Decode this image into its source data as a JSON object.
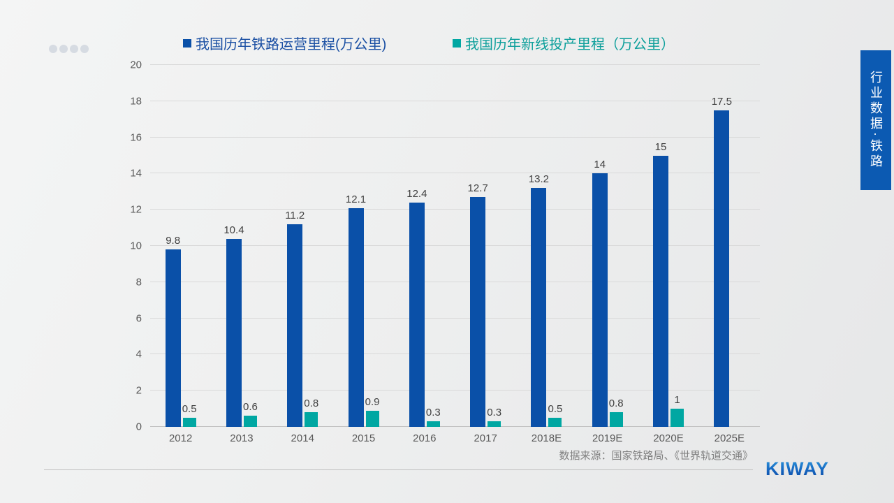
{
  "pagination": {
    "dot_count": 4
  },
  "legend": [
    {
      "label": "我国历年铁路运营里程(万公里)",
      "color": "#0a50a8"
    },
    {
      "label": "我国历年新线投产里程（万公里）",
      "color": "#00a7a2"
    }
  ],
  "chart_data": {
    "type": "bar",
    "categories": [
      "2012",
      "2013",
      "2014",
      "2015",
      "2016",
      "2017",
      "2018E",
      "2019E",
      "2020E",
      "2025E"
    ],
    "series": [
      {
        "name": "我国历年铁路运营里程(万公里)",
        "color": "#0a50a8",
        "values": [
          9.8,
          10.4,
          11.2,
          12.1,
          12.4,
          12.7,
          13.2,
          14,
          15,
          17.5
        ]
      },
      {
        "name": "我国历年新线投产里程（万公里）",
        "color": "#00a7a2",
        "values": [
          0.5,
          0.6,
          0.8,
          0.9,
          0.3,
          0.3,
          0.5,
          0.8,
          1,
          null
        ]
      }
    ],
    "ylim": [
      0,
      20
    ],
    "ytick_step": 2,
    "yticks": [
      "0",
      "2",
      "4",
      "6",
      "8",
      "10",
      "12",
      "14",
      "16",
      "18",
      "20"
    ],
    "grid": true,
    "legend_position": "top",
    "data_labels": true
  },
  "source_note": "数据来源：国家铁路局、《世界轨道交通》",
  "side_tab": {
    "label": "行业数据·铁路",
    "color": "#0c5ab2"
  },
  "brand": {
    "logo_text": "KIWAY"
  }
}
